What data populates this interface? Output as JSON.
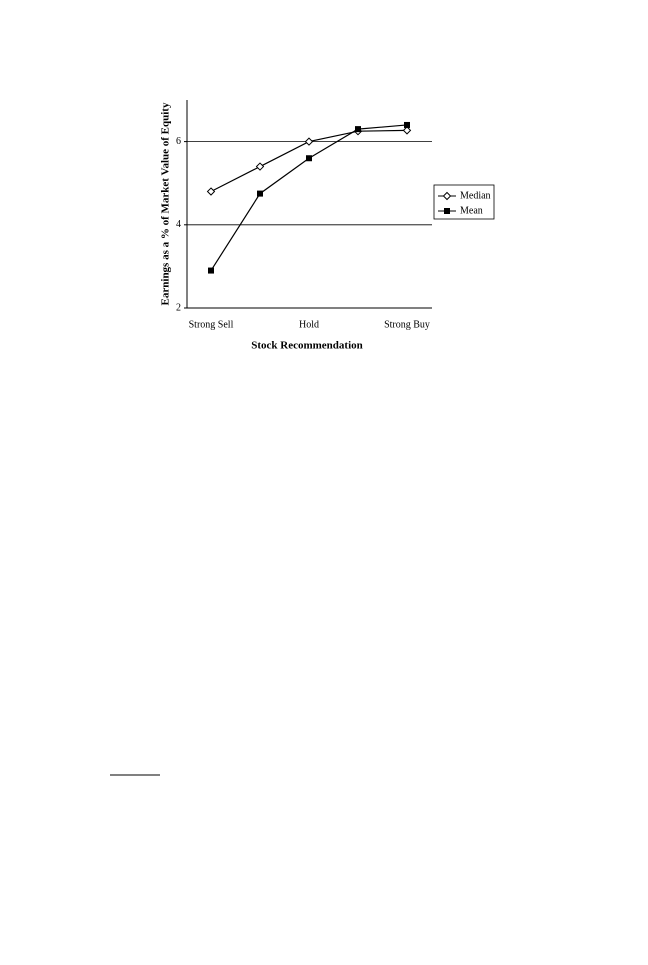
{
  "chart_data": {
    "type": "line",
    "x_label": "Stock Recommendation",
    "y_label": "Earnings as a % of Market Value of Equity",
    "categories": [
      "Strong Sell",
      null,
      "Hold",
      null,
      "Strong Buy"
    ],
    "series": [
      {
        "name": "Median",
        "color": "#000000",
        "marker": "diamond",
        "values": [
          4.8,
          5.4,
          6.0,
          6.25,
          6.27
        ]
      },
      {
        "name": "Mean",
        "color": "#000000",
        "marker": "square",
        "values": [
          2.9,
          4.75,
          5.6,
          6.3,
          6.4
        ]
      }
    ],
    "ylim": [
      2,
      7
    ],
    "yticks": [
      2,
      4,
      6
    ],
    "grid": true,
    "legend": "right"
  }
}
